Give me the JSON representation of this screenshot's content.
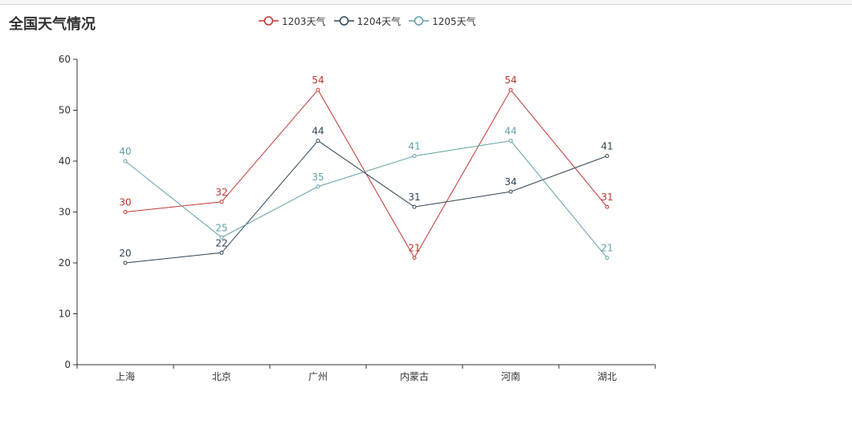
{
  "chart_data": {
    "type": "line",
    "title": "全国天气情况",
    "categories": [
      "上海",
      "北京",
      "广州",
      "内蒙古",
      "河南",
      "湖北"
    ],
    "ylim": [
      0,
      60
    ],
    "yticks": [
      0,
      10,
      20,
      30,
      40,
      50,
      60
    ],
    "grid": false,
    "legend_position": "top-center",
    "series": [
      {
        "name": "1203天气",
        "color": "#c23531",
        "values": [
          30,
          32,
          54,
          21,
          54,
          31
        ]
      },
      {
        "name": "1204天气",
        "color": "#2f4554",
        "values": [
          20,
          22,
          44,
          31,
          34,
          41
        ]
      },
      {
        "name": "1205天气",
        "color": "#61a0a8",
        "values": [
          40,
          25,
          35,
          41,
          44,
          21
        ]
      }
    ]
  }
}
